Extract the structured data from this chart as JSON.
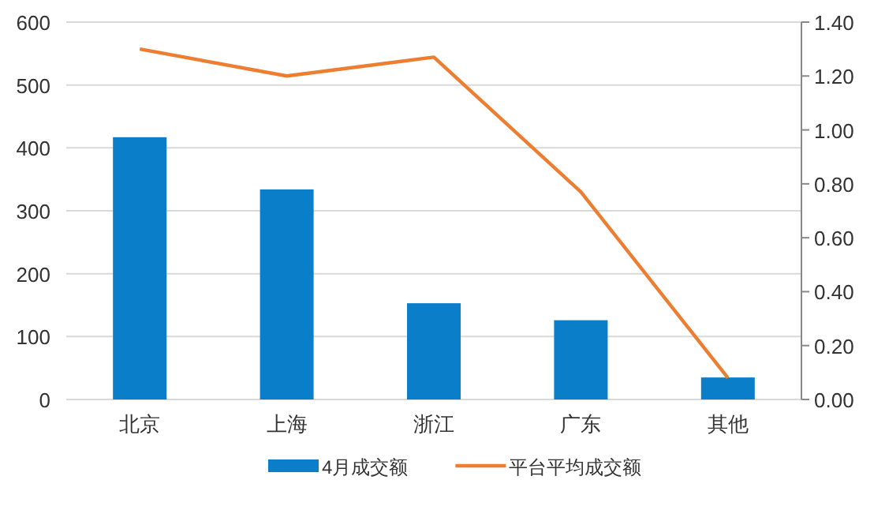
{
  "chart_data": {
    "type": "bar",
    "categories": [
      "北京",
      "上海",
      "浙江",
      "广东",
      "其他"
    ],
    "series": [
      {
        "name": "4月成交额",
        "color": "#0a7ec8",
        "values": [
          417,
          334,
          153,
          126,
          35
        ]
      },
      {
        "name": "平台平均成交额",
        "type": "line",
        "axis": "y2",
        "color": "#ed7d31",
        "values": [
          1.3,
          1.2,
          1.27,
          0.77,
          0.08
        ]
      }
    ],
    "ylim": [
      0,
      600
    ],
    "yticks": [
      0,
      100,
      200,
      300,
      400,
      500,
      600
    ],
    "y2lim": [
      0,
      1.4
    ],
    "y2ticks": [
      {
        "value": 0,
        "label": "0.00"
      },
      {
        "value": 0.2,
        "label": "0.20"
      },
      {
        "value": 0.4,
        "label": "0.40"
      },
      {
        "value": 0.6,
        "label": "0.60"
      },
      {
        "value": 0.8,
        "label": "0.80"
      },
      {
        "value": 1.0,
        "label": "1.00"
      },
      {
        "value": 1.2,
        "label": "1.20"
      },
      {
        "value": 1.4,
        "label": "1.40"
      }
    ],
    "grid": "y",
    "legend": "bottom",
    "marker": "none"
  }
}
